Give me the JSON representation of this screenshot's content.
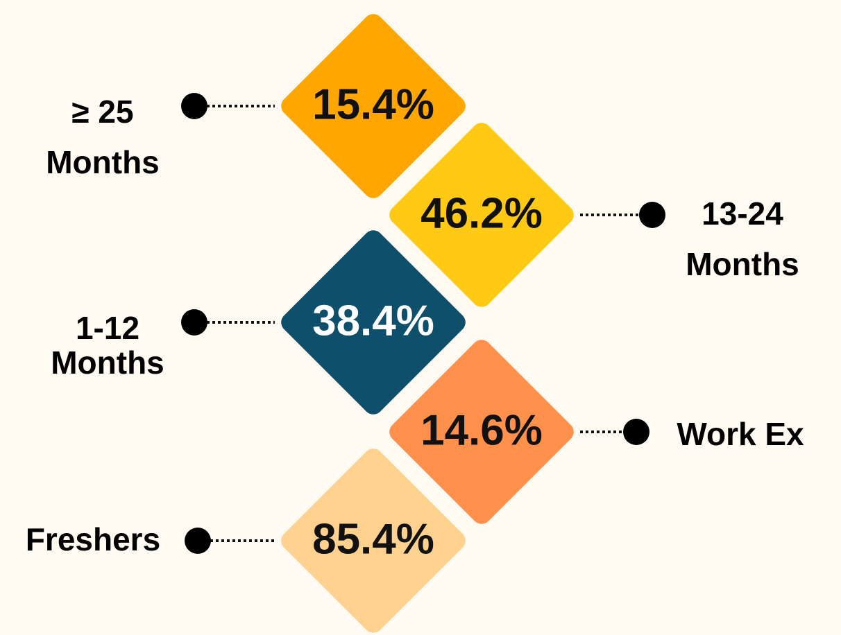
{
  "items": [
    {
      "label_lines": [
        "≥ 25",
        "Months"
      ],
      "value": "15.4%",
      "color": "#ffa600",
      "text_color": "#111111"
    },
    {
      "label_lines": [
        "13-24",
        "Months"
      ],
      "value": "46.2%",
      "color": "#ffc914",
      "text_color": "#111111"
    },
    {
      "label_lines": [
        "1-12",
        "Months"
      ],
      "value": "38.4%",
      "color": "#0e4f6b",
      "text_color": "#ffffff"
    },
    {
      "label_lines": [
        "Work Ex"
      ],
      "value": "14.6%",
      "color": "#ff914d",
      "text_color": "#111111"
    },
    {
      "label_lines": [
        "Freshers"
      ],
      "value": "85.4%",
      "color": "#ffd18f",
      "text_color": "#111111"
    }
  ]
}
